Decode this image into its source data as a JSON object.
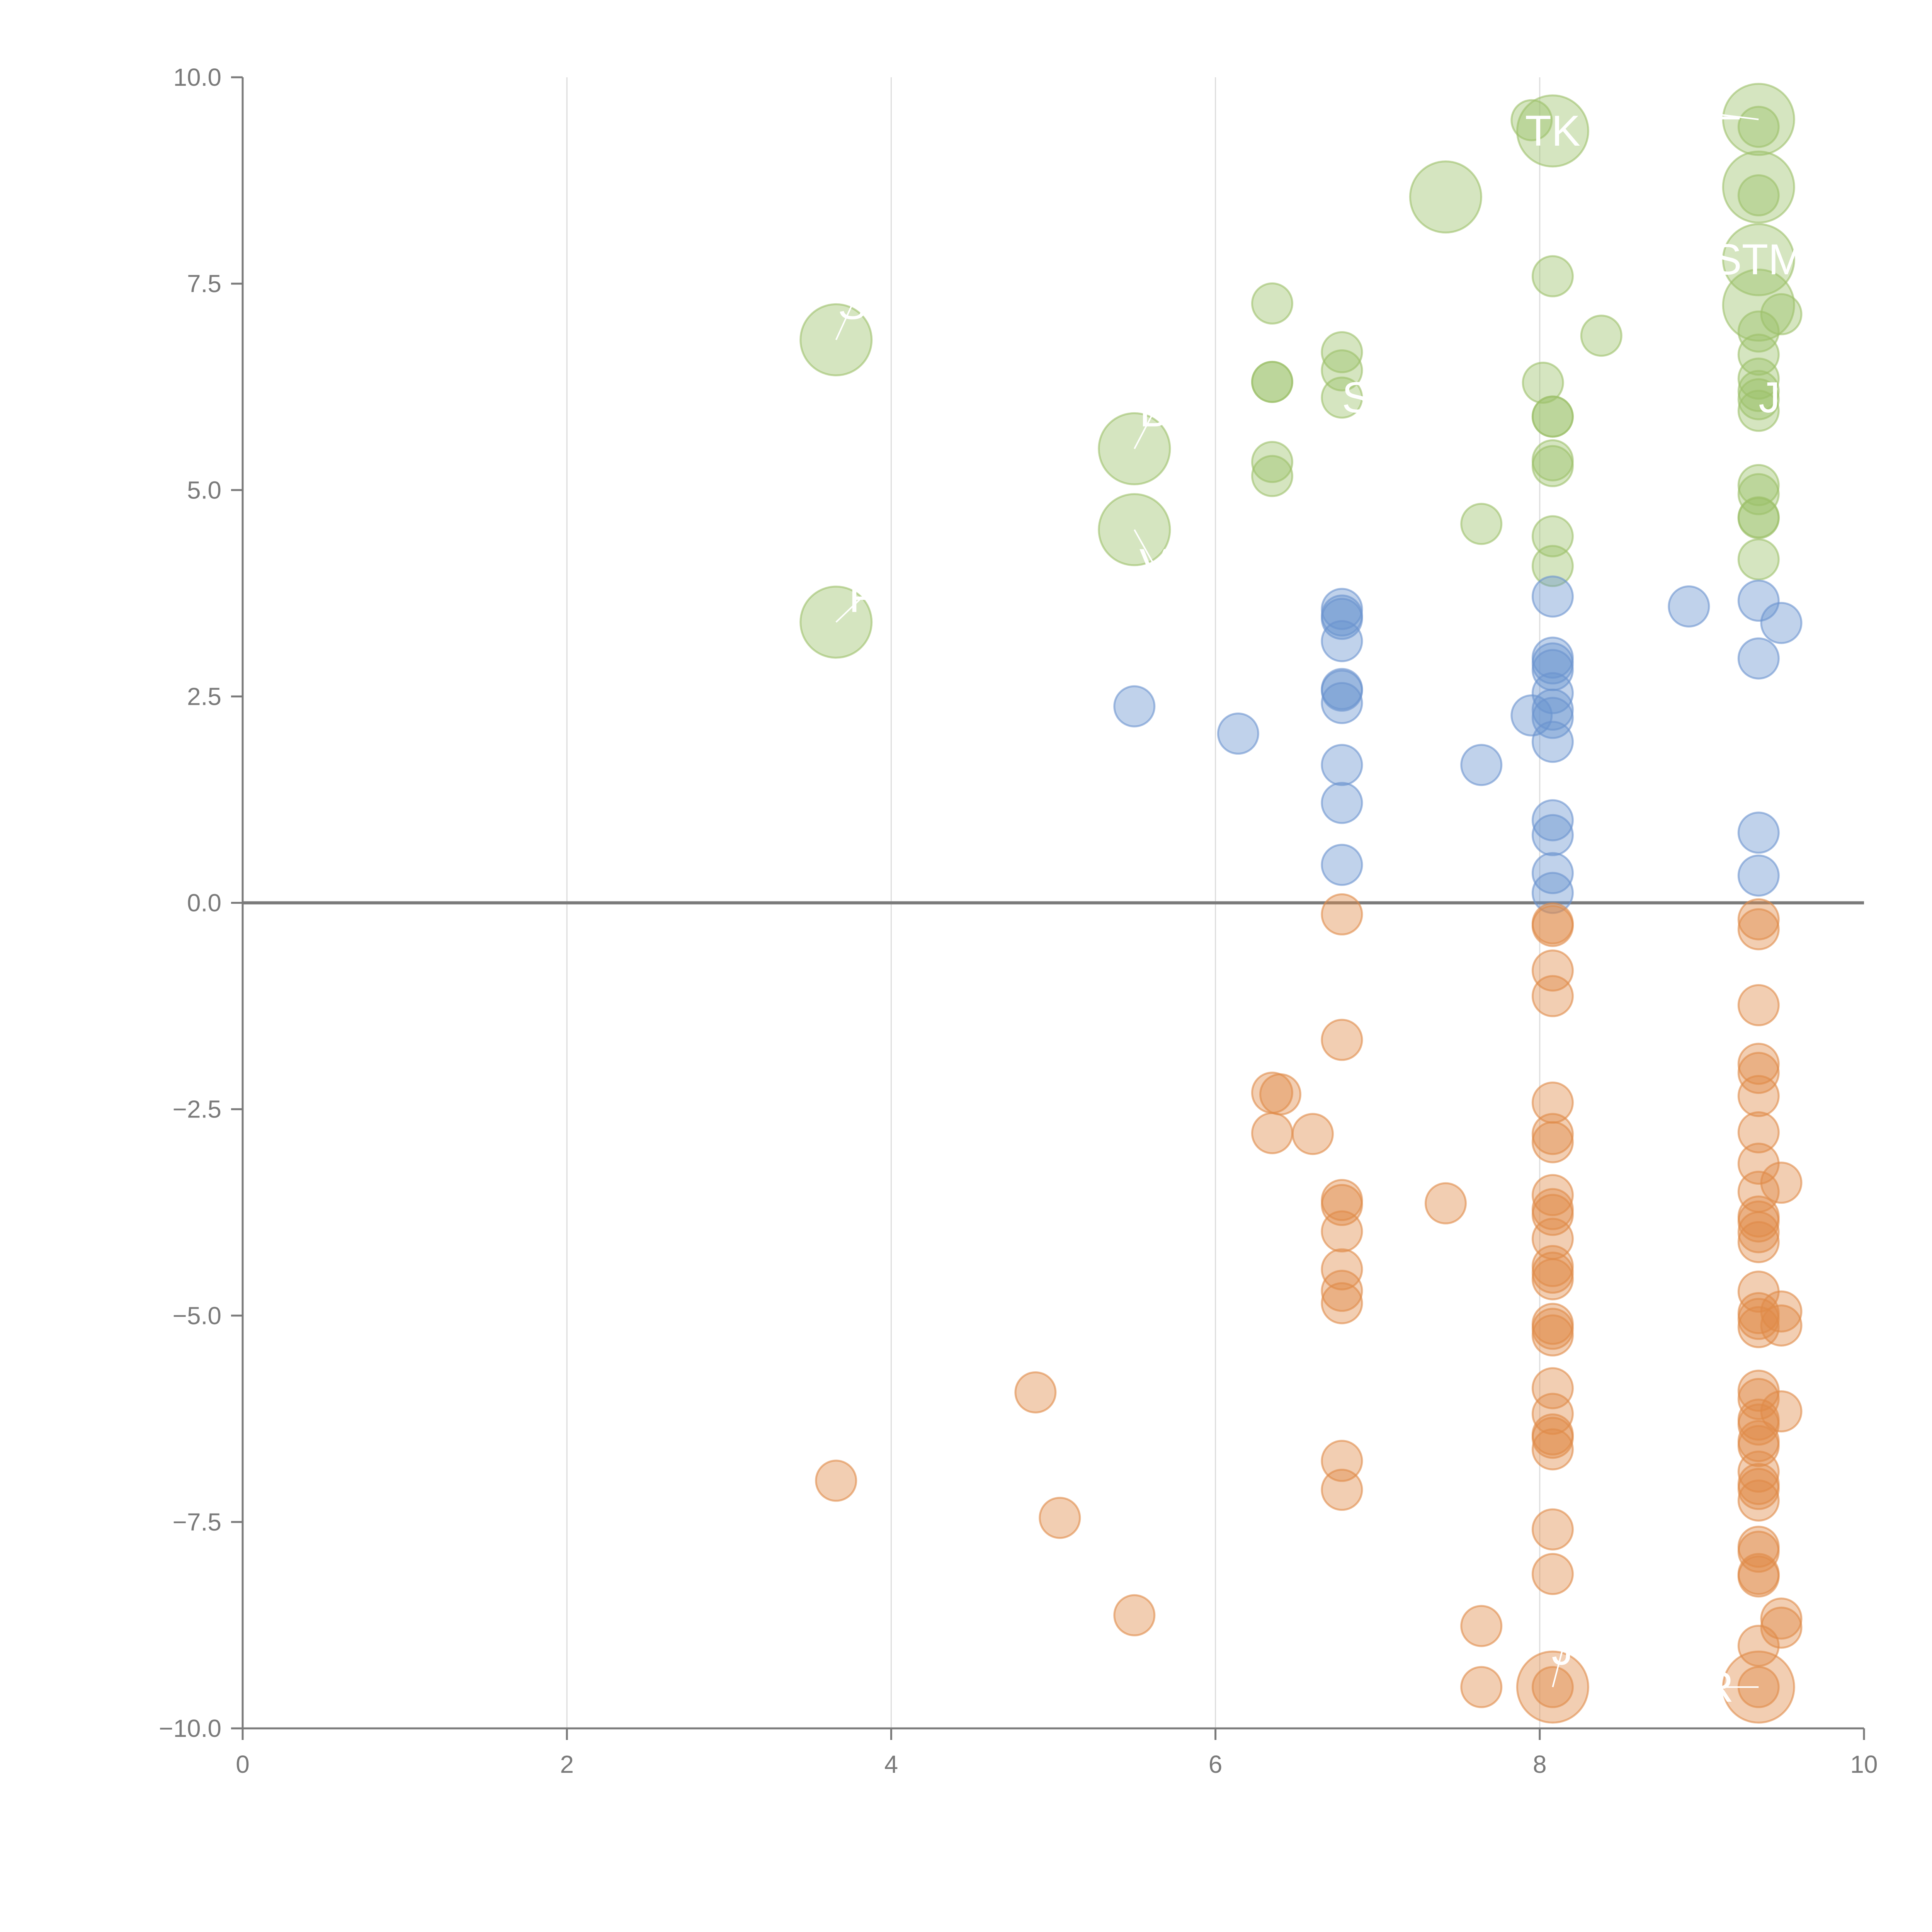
{
  "chart_data": {
    "type": "scatter",
    "title": "",
    "xlabel": "",
    "ylabel": "",
    "xlim": [
      0,
      10
    ],
    "ylim": [
      -10,
      10
    ],
    "x_ticks": [
      "0",
      "2",
      "4",
      "6",
      "8",
      "10"
    ],
    "x_tick_values": [
      0,
      2,
      4,
      6,
      8,
      10
    ],
    "y_ticks": [
      "10.0",
      "7.5",
      "5.0",
      "2.5",
      "0.0",
      "−2.5",
      "−5.0",
      "−7.5",
      "−10.0"
    ],
    "y_tick_values": [
      10,
      7.5,
      5,
      2.5,
      0,
      -2.5,
      -5,
      -7.5,
      -10
    ],
    "vertical_gridlines": [
      2,
      4,
      6,
      8
    ],
    "reference_line_y": 0,
    "colors": {
      "green": "#9cc069",
      "blue": "#6a93cf",
      "orange": "#e08a48",
      "axis": "#7a7a7a",
      "grid": "#dddddd",
      "zero_line": "#7a7a7a"
    },
    "series": [
      {
        "name": "green",
        "points": [
          [
            3.66,
            6.82,
            2
          ],
          [
            3.66,
            3.4,
            2
          ],
          [
            5.5,
            5.5,
            2
          ],
          [
            5.5,
            4.52,
            2
          ],
          [
            6.35,
            7.26,
            1
          ],
          [
            6.35,
            6.31,
            1
          ],
          [
            6.35,
            6.31,
            1
          ],
          [
            6.35,
            5.34,
            1
          ],
          [
            6.35,
            5.17,
            1
          ],
          [
            6.78,
            6.67,
            1
          ],
          [
            6.78,
            6.12,
            1
          ],
          [
            6.78,
            6.45,
            1
          ],
          [
            7.42,
            8.55,
            2
          ],
          [
            7.64,
            4.59,
            1
          ],
          [
            7.95,
            9.48,
            1
          ],
          [
            8.08,
            9.35,
            2
          ],
          [
            8.08,
            7.59,
            1
          ],
          [
            8.02,
            6.3,
            1
          ],
          [
            8.08,
            5.89,
            1
          ],
          [
            8.08,
            5.89,
            1
          ],
          [
            8.08,
            5.36,
            1
          ],
          [
            8.08,
            5.29,
            1
          ],
          [
            8.08,
            4.44,
            1
          ],
          [
            8.08,
            4.08,
            1
          ],
          [
            8.38,
            6.87,
            1
          ],
          [
            9.35,
            9.49,
            2
          ],
          [
            9.35,
            9.4,
            1
          ],
          [
            9.35,
            8.67,
            2
          ],
          [
            9.35,
            8.57,
            1
          ],
          [
            9.35,
            7.79,
            2
          ],
          [
            9.35,
            7.24,
            2
          ],
          [
            9.49,
            7.13,
            1
          ],
          [
            9.35,
            6.92,
            1
          ],
          [
            9.35,
            6.64,
            1
          ],
          [
            9.35,
            6.35,
            1
          ],
          [
            9.35,
            6.2,
            1
          ],
          [
            9.35,
            6.1,
            1
          ],
          [
            9.35,
            5.96,
            1
          ],
          [
            9.35,
            5.06,
            1
          ],
          [
            9.35,
            4.95,
            1
          ],
          [
            9.35,
            4.67,
            1
          ],
          [
            9.35,
            4.66,
            1
          ],
          [
            9.35,
            4.16,
            1
          ]
        ]
      },
      {
        "name": "blue",
        "points": [
          [
            5.5,
            2.38,
            1
          ],
          [
            6.14,
            2.05,
            1
          ],
          [
            6.78,
            3.56,
            1
          ],
          [
            6.78,
            3.48,
            1
          ],
          [
            6.78,
            3.44,
            1
          ],
          [
            6.78,
            3.17,
            1
          ],
          [
            6.78,
            2.59,
            1
          ],
          [
            6.78,
            2.57,
            1
          ],
          [
            6.78,
            2.42,
            1
          ],
          [
            6.78,
            1.67,
            1
          ],
          [
            6.78,
            1.21,
            1
          ],
          [
            6.78,
            0.46,
            1
          ],
          [
            7.64,
            1.67,
            1
          ],
          [
            7.95,
            2.27,
            1
          ],
          [
            8.08,
            3.71,
            1
          ],
          [
            8.08,
            2.97,
            1
          ],
          [
            8.08,
            2.9,
            1
          ],
          [
            8.08,
            2.82,
            1
          ],
          [
            8.08,
            2.54,
            1
          ],
          [
            8.08,
            2.34,
            1
          ],
          [
            8.08,
            2.24,
            1
          ],
          [
            8.08,
            1.95,
            1
          ],
          [
            8.08,
            1.0,
            1
          ],
          [
            8.08,
            0.82,
            1
          ],
          [
            8.08,
            0.36,
            1
          ],
          [
            8.08,
            0.12,
            1
          ],
          [
            8.92,
            3.59,
            1
          ],
          [
            9.35,
            3.66,
            1
          ],
          [
            9.49,
            3.39,
            1
          ],
          [
            9.35,
            2.96,
            1
          ],
          [
            9.35,
            0.85,
            1
          ],
          [
            9.35,
            0.33,
            1
          ]
        ]
      },
      {
        "name": "orange",
        "points": [
          [
            3.66,
            -7.0,
            1
          ],
          [
            4.89,
            -5.93,
            1
          ],
          [
            5.04,
            -7.45,
            1
          ],
          [
            5.5,
            -8.63,
            1
          ],
          [
            6.35,
            -2.3,
            1
          ],
          [
            6.4,
            -2.32,
            1
          ],
          [
            6.35,
            -2.79,
            1
          ],
          [
            6.6,
            -2.8,
            1
          ],
          [
            6.78,
            -0.14,
            1
          ],
          [
            6.78,
            -1.66,
            1
          ],
          [
            6.78,
            -3.6,
            1
          ],
          [
            6.78,
            -3.66,
            1
          ],
          [
            6.78,
            -3.98,
            1
          ],
          [
            6.78,
            -4.44,
            1
          ],
          [
            6.78,
            -4.7,
            1
          ],
          [
            6.78,
            -4.85,
            1
          ],
          [
            6.78,
            -6.76,
            1
          ],
          [
            6.78,
            -7.11,
            1
          ],
          [
            7.42,
            -3.64,
            1
          ],
          [
            7.64,
            -8.76,
            1
          ],
          [
            7.64,
            -9.5,
            1
          ],
          [
            8.08,
            -0.25,
            1
          ],
          [
            8.08,
            -0.28,
            1
          ],
          [
            8.08,
            -0.82,
            1
          ],
          [
            8.08,
            -1.13,
            1
          ],
          [
            8.08,
            -2.42,
            1
          ],
          [
            8.08,
            -2.8,
            1
          ],
          [
            8.08,
            -2.9,
            1
          ],
          [
            8.08,
            -3.54,
            1
          ],
          [
            8.08,
            -3.71,
            1
          ],
          [
            8.08,
            -3.78,
            1
          ],
          [
            8.08,
            -4.07,
            1
          ],
          [
            8.08,
            -4.4,
            1
          ],
          [
            8.08,
            -4.48,
            1
          ],
          [
            8.08,
            -4.56,
            1
          ],
          [
            8.08,
            -5.1,
            1
          ],
          [
            8.08,
            -5.16,
            1
          ],
          [
            8.08,
            -5.24,
            1
          ],
          [
            8.08,
            -5.88,
            1
          ],
          [
            8.08,
            -6.19,
            1
          ],
          [
            8.08,
            -6.44,
            1
          ],
          [
            8.08,
            -6.48,
            1
          ],
          [
            8.08,
            -6.62,
            1
          ],
          [
            8.08,
            -7.59,
            1
          ],
          [
            8.08,
            -8.13,
            1
          ],
          [
            8.08,
            -9.5,
            2
          ],
          [
            8.08,
            -9.5,
            1
          ],
          [
            9.35,
            -0.2,
            1
          ],
          [
            9.35,
            -0.32,
            1
          ],
          [
            9.35,
            -1.24,
            1
          ],
          [
            9.35,
            -1.95,
            1
          ],
          [
            9.35,
            -2.06,
            1
          ],
          [
            9.35,
            -2.34,
            1
          ],
          [
            9.35,
            -2.78,
            1
          ],
          [
            9.35,
            -3.16,
            1
          ],
          [
            9.35,
            -3.5,
            1
          ],
          [
            9.49,
            -3.39,
            1
          ],
          [
            9.35,
            -3.8,
            1
          ],
          [
            9.35,
            -3.86,
            1
          ],
          [
            9.35,
            -3.99,
            1
          ],
          [
            9.35,
            -4.11,
            1
          ],
          [
            9.35,
            -4.71,
            1
          ],
          [
            9.35,
            -4.97,
            1
          ],
          [
            9.49,
            -4.95,
            1
          ],
          [
            9.35,
            -5.04,
            1
          ],
          [
            9.49,
            -5.12,
            1
          ],
          [
            9.35,
            -5.14,
            1
          ],
          [
            9.35,
            -5.91,
            1
          ],
          [
            9.35,
            -6.01,
            1
          ],
          [
            9.35,
            -6.26,
            1
          ],
          [
            9.35,
            -6.32,
            1
          ],
          [
            9.49,
            -6.16,
            1
          ],
          [
            9.35,
            -6.52,
            1
          ],
          [
            9.35,
            -6.58,
            1
          ],
          [
            9.35,
            -6.89,
            1
          ],
          [
            9.35,
            -7.04,
            1
          ],
          [
            9.35,
            -7.1,
            1
          ],
          [
            9.35,
            -7.24,
            1
          ],
          [
            9.35,
            -7.8,
            1
          ],
          [
            9.35,
            -7.86,
            1
          ],
          [
            9.35,
            -8.13,
            1
          ],
          [
            9.35,
            -8.16,
            1
          ],
          [
            9.49,
            -8.67,
            1
          ],
          [
            9.49,
            -8.78,
            1
          ],
          [
            9.35,
            -9.0,
            1
          ],
          [
            9.35,
            -9.5,
            2
          ],
          [
            9.35,
            -9.5,
            1
          ]
        ]
      }
    ],
    "labels": [
      {
        "text": "TK",
        "x": 8.08,
        "y": 9.35,
        "tx": 8.08,
        "ty": 9.35,
        "anchor": "middle"
      },
      {
        "text": "STM",
        "x": 9.35,
        "y": 7.79,
        "tx": 9.35,
        "ty": 7.79,
        "anchor": "middle"
      },
      {
        "text": "S",
        "x": 6.78,
        "y": 6.12,
        "tx": 6.78,
        "ty": 6.12,
        "anchor": "start"
      },
      {
        "text": "S",
        "x": 3.66,
        "y": 6.82,
        "tx": 3.76,
        "ty": 7.25,
        "anchor": "middle"
      },
      {
        "text": "B",
        "x": 5.5,
        "y": 5.5,
        "tx": 5.62,
        "ty": 5.95,
        "anchor": "middle"
      },
      {
        "text": "V",
        "x": 5.5,
        "y": 4.52,
        "tx": 5.62,
        "ty": 4.1,
        "anchor": "middle"
      },
      {
        "text": "F",
        "x": 3.66,
        "y": 3.4,
        "tx": 3.82,
        "ty": 3.7,
        "anchor": "middle"
      },
      {
        "text": "R",
        "x": 9.35,
        "y": -9.5,
        "tx": 9.1,
        "ty": -9.5,
        "anchor": "middle"
      },
      {
        "text": "J",
        "x": 8.08,
        "y": -9.5,
        "tx": 8.14,
        "ty": -9.05,
        "anchor": "middle"
      },
      {
        "text": "—",
        "x": 9.35,
        "y": 9.49,
        "tx": 9.1,
        "ty": 9.55,
        "anchor": "middle"
      },
      {
        "text": "J",
        "x": 9.35,
        "y": 6.12,
        "tx": 9.35,
        "ty": 6.12,
        "anchor": "start"
      }
    ]
  }
}
